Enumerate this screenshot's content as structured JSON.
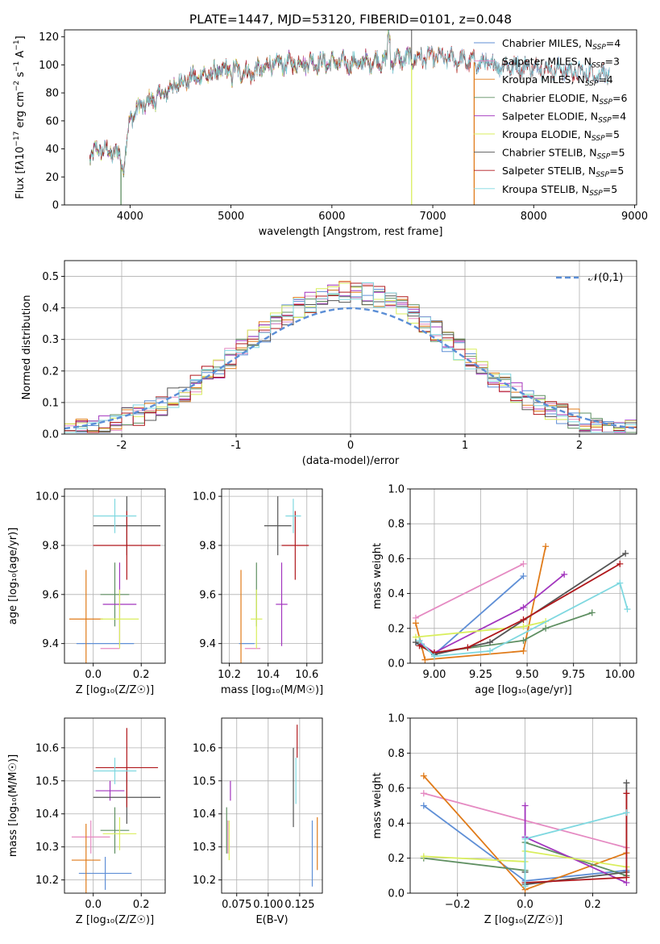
{
  "figure_title": "PLATE=1447, MJD=53120, FIBERID=0101, z=0.048",
  "colors": {
    "Chabrier MILES": "#5f8fd6",
    "Salpeter MILES": "#e58ac2",
    "Kroupa MILES": "#e07b1a",
    "Chabrier ELODIE": "#5f8f62",
    "Salpeter ELODIE": "#a235be",
    "Kroupa ELODIE": "#d9ee5c",
    "Chabrier STELIB": "#555555",
    "Salpeter STELIB": "#b0181c",
    "Kroupa STELIB": "#7fd8e0"
  },
  "chart_data": [
    {
      "id": "spectrum",
      "type": "line",
      "title": "PLATE=1447, MJD=53120, FIBERID=0101, z=0.048",
      "xlabel": "wavelength [Angstrom, rest frame]",
      "ylabel_html": "Flux [f<tspan font-style='italic'>λ</tspan>10<tspan dy='-6' font-size='9'>−17</tspan><tspan dy='6'> erg cm</tspan><tspan dy='-6' font-size='9'>−2</tspan><tspan dy='6'> s</tspan><tspan dy='-6' font-size='9'>−1</tspan><tspan dy='6'> A</tspan><tspan dy='-6' font-size='9'>−1</tspan><tspan dy='6'>]</tspan>",
      "xlim": [
        3350,
        9020
      ],
      "ylim": [
        0,
        125
      ],
      "xticks": [
        4000,
        5000,
        6000,
        7000,
        8000,
        9000
      ],
      "yticks": [
        0,
        20,
        40,
        60,
        80,
        100,
        120
      ],
      "legend_position": "top-right",
      "continuum_knots": [
        [
          3600,
          35
        ],
        [
          3700,
          40
        ],
        [
          3800,
          38
        ],
        [
          3900,
          36
        ],
        [
          3930,
          25
        ],
        [
          4000,
          62
        ],
        [
          4100,
          70
        ],
        [
          4300,
          78
        ],
        [
          4500,
          88
        ],
        [
          4700,
          92
        ],
        [
          5000,
          97
        ],
        [
          5200,
          94
        ],
        [
          5400,
          100
        ],
        [
          5800,
          102
        ],
        [
          6200,
          101
        ],
        [
          6500,
          103
        ],
        [
          6700,
          104
        ],
        [
          7000,
          106
        ],
        [
          7300,
          103
        ],
        [
          7600,
          100
        ],
        [
          8000,
          98
        ],
        [
          8300,
          96
        ],
        [
          8600,
          94
        ],
        [
          8750,
          93
        ]
      ],
      "series": [
        {
          "name": "Chabrier MILES",
          "nssp": "4",
          "range": [
            3600,
            8750
          ],
          "dropout": null
        },
        {
          "name": "Salpeter MILES",
          "nssp": "3",
          "range": [
            3600,
            7420
          ],
          "dropout": null
        },
        {
          "name": "Kroupa MILES",
          "nssp": "4",
          "range": [
            3600,
            7420
          ],
          "dropout": 7410
        },
        {
          "name": "Chabrier ELODIE",
          "nssp": "6",
          "range": [
            3600,
            6800
          ],
          "dropout": 3910
        },
        {
          "name": "Salpeter ELODIE",
          "nssp": "4",
          "range": [
            3600,
            6800
          ],
          "dropout": null
        },
        {
          "name": "Kroupa ELODIE",
          "nssp": "5",
          "range": [
            3600,
            6800
          ],
          "dropout": 6790
        },
        {
          "name": "Chabrier STELIB",
          "nssp": "5",
          "range": [
            3600,
            8750
          ],
          "dropout": null
        },
        {
          "name": "Salpeter STELIB",
          "nssp": "5",
          "range": [
            3600,
            8750
          ],
          "dropout": null
        },
        {
          "name": "Kroupa STELIB",
          "nssp": "5",
          "range": [
            3600,
            8750
          ],
          "dropout": null
        }
      ]
    },
    {
      "id": "residuals",
      "type": "step",
      "xlabel": "(data-model)/error",
      "ylabel": "Normed distribution",
      "xlim": [
        -2.5,
        2.5
      ],
      "ylim": [
        0,
        0.55
      ],
      "xticks": [
        -2,
        -1,
        0,
        1,
        2
      ],
      "yticks": [
        0.0,
        0.1,
        0.2,
        0.3,
        0.4,
        0.5
      ],
      "grid": true,
      "legend_label": "𝒩(0,1)",
      "legend_position": "top-right",
      "bin_width": 0.1,
      "gaussian": {
        "mean": 0,
        "sigma": 1
      }
    },
    {
      "id": "age_vs_Z",
      "type": "errorbar",
      "xlabel": "Z [log₁₀(Z/Z☉)]",
      "ylabel": "age  [log₁₀(age/yr)]",
      "xlim": [
        -0.12,
        0.3
      ],
      "ylim": [
        9.32,
        10.03
      ],
      "xticks": [
        0.0,
        0.2
      ],
      "xticklabels": [
        "0.0",
        "0.2"
      ],
      "yticks": [
        9.4,
        9.6,
        9.8,
        10.0
      ],
      "yticklabels": [
        "9.4",
        "9.6",
        "9.8",
        "10.0"
      ],
      "grid": true,
      "points": [
        {
          "c": "Chabrier MILES",
          "x": 0.05,
          "xe": 0.12,
          "y": 9.4,
          "ye": 0.0
        },
        {
          "c": "Salpeter MILES",
          "x": 0.07,
          "xe": 0.04,
          "y": 9.38,
          "ye": 0.0
        },
        {
          "c": "Kroupa MILES",
          "x": -0.03,
          "xe": 0.07,
          "y": 9.5,
          "ye": 0.2
        },
        {
          "c": "Chabrier ELODIE",
          "x": 0.09,
          "xe": 0.06,
          "y": 9.6,
          "ye": 0.13
        },
        {
          "c": "Salpeter ELODIE",
          "x": 0.11,
          "xe": 0.07,
          "y": 9.56,
          "ye": 0.17
        },
        {
          "c": "Kroupa ELODIE",
          "x": 0.11,
          "xe": 0.08,
          "y": 9.5,
          "ye": 0.12
        },
        {
          "c": "Chabrier STELIB",
          "x": 0.14,
          "xe": 0.14,
          "y": 9.88,
          "ye": 0.12
        },
        {
          "c": "Salpeter STELIB",
          "x": 0.14,
          "xe": 0.14,
          "y": 9.8,
          "ye": 0.14
        },
        {
          "c": "Kroupa STELIB",
          "x": 0.09,
          "xe": 0.09,
          "y": 9.92,
          "ye": 0.07
        }
      ]
    },
    {
      "id": "age_vs_mass",
      "type": "errorbar",
      "xlabel": "mass [log₁₀(M/M☉)]",
      "ylabel": "",
      "xlim": [
        10.16,
        10.68
      ],
      "ylim": [
        9.32,
        10.03
      ],
      "xticks": [
        10.2,
        10.4,
        10.6
      ],
      "xticklabels": [
        "10.2",
        "10.4",
        "10.6"
      ],
      "yticks": [
        9.4,
        9.6,
        9.8,
        10.0
      ],
      "yticklabels": [
        "9.4",
        "9.6",
        "9.8",
        "10.0"
      ],
      "grid": true,
      "points": [
        {
          "c": "Chabrier MILES",
          "x": 10.29,
          "xe": 0.04,
          "y": 9.4,
          "ye": 0.0
        },
        {
          "c": "Salpeter MILES",
          "x": 10.32,
          "xe": 0.04,
          "y": 9.38,
          "ye": 0.0
        },
        {
          "c": "Kroupa MILES",
          "x": 10.26,
          "xe": 0.0,
          "y": 9.5,
          "ye": 0.2
        },
        {
          "c": "Chabrier ELODIE",
          "x": 10.34,
          "xe": 0.0,
          "y": 9.6,
          "ye": 0.13
        },
        {
          "c": "Salpeter ELODIE",
          "x": 10.47,
          "xe": 0.03,
          "y": 9.56,
          "ye": 0.17
        },
        {
          "c": "Kroupa ELODIE",
          "x": 10.34,
          "xe": 0.03,
          "y": 9.5,
          "ye": 0.12
        },
        {
          "c": "Chabrier STELIB",
          "x": 10.45,
          "xe": 0.07,
          "y": 9.88,
          "ye": 0.12
        },
        {
          "c": "Salpeter STELIB",
          "x": 10.54,
          "xe": 0.07,
          "y": 9.8,
          "ye": 0.14
        },
        {
          "c": "Kroupa STELIB",
          "x": 10.53,
          "xe": 0.04,
          "y": 9.92,
          "ye": 0.07
        }
      ]
    },
    {
      "id": "mass_vs_Z",
      "type": "errorbar",
      "xlabel": "Z [log₁₀(Z/Z☉)]",
      "ylabel": "mass [log₁₀(M/M☉)]",
      "xlim": [
        -0.12,
        0.3
      ],
      "ylim": [
        10.16,
        10.69
      ],
      "xticks": [
        0.0,
        0.2
      ],
      "xticklabels": [
        "0.0",
        "0.2"
      ],
      "yticks": [
        10.2,
        10.3,
        10.4,
        10.5,
        10.6
      ],
      "yticklabels": [
        "10.2",
        "10.3",
        "10.4",
        "10.5",
        "10.6"
      ],
      "grid": true,
      "points": [
        {
          "c": "Chabrier MILES",
          "x": 0.05,
          "xe": 0.11,
          "y": 10.22,
          "ye": 0.05
        },
        {
          "c": "Salpeter MILES",
          "x": -0.01,
          "xe": 0.08,
          "y": 10.33,
          "ye": 0.05
        },
        {
          "c": "Kroupa MILES",
          "x": -0.03,
          "xe": 0.06,
          "y": 10.26,
          "ye": 0.11
        },
        {
          "c": "Chabrier ELODIE",
          "x": 0.09,
          "xe": 0.06,
          "y": 10.35,
          "ye": 0.07
        },
        {
          "c": "Salpeter ELODIE",
          "x": 0.07,
          "xe": 0.06,
          "y": 10.47,
          "ye": 0.03
        },
        {
          "c": "Kroupa ELODIE",
          "x": 0.11,
          "xe": 0.07,
          "y": 10.34,
          "ye": 0.05
        },
        {
          "c": "Chabrier STELIB",
          "x": 0.14,
          "xe": 0.14,
          "y": 10.45,
          "ye": 0.08
        },
        {
          "c": "Salpeter STELIB",
          "x": 0.14,
          "xe": 0.13,
          "y": 10.54,
          "ye": 0.12
        },
        {
          "c": "Kroupa STELIB",
          "x": 0.09,
          "xe": 0.09,
          "y": 10.53,
          "ye": 0.04
        }
      ]
    },
    {
      "id": "mass_vs_EBV",
      "type": "errorbar",
      "xlabel": "E(B-V)",
      "ylabel": "",
      "xlim": [
        0.063,
        0.143
      ],
      "ylim": [
        10.16,
        10.69
      ],
      "xticks": [
        0.075,
        0.1,
        0.125
      ],
      "xticklabels": [
        "0.075",
        "0.100",
        "0.125"
      ],
      "yticks": [
        10.2,
        10.3,
        10.4,
        10.5,
        10.6
      ],
      "yticklabels": [
        "10.2",
        "10.3",
        "10.4",
        "10.5",
        "10.6"
      ],
      "grid": true,
      "points": [
        {
          "c": "Chabrier MILES",
          "x": 0.135,
          "xe": 0.0,
          "y": 10.28,
          "ye": 0.1
        },
        {
          "c": "Salpeter MILES",
          "x": 0.068,
          "xe": 0.0,
          "y": 10.33,
          "ye": 0.05
        },
        {
          "c": "Kroupa MILES",
          "x": 0.139,
          "xe": 0.0,
          "y": 10.31,
          "ye": 0.08
        },
        {
          "c": "Chabrier ELODIE",
          "x": 0.067,
          "xe": 0.0,
          "y": 10.35,
          "ye": 0.07
        },
        {
          "c": "Salpeter ELODIE",
          "x": 0.07,
          "xe": 0.0,
          "y": 10.47,
          "ye": 0.03
        },
        {
          "c": "Kroupa ELODIE",
          "x": 0.069,
          "xe": 0.0,
          "y": 10.32,
          "ye": 0.06
        },
        {
          "c": "Chabrier STELIB",
          "x": 0.12,
          "xe": 0.0,
          "y": 10.48,
          "ye": 0.12
        },
        {
          "c": "Salpeter STELIB",
          "x": 0.123,
          "xe": 0.0,
          "y": 10.62,
          "ye": 0.05
        },
        {
          "c": "Kroupa STELIB",
          "x": 0.122,
          "xe": 0.0,
          "y": 10.5,
          "ye": 0.07
        }
      ]
    },
    {
      "id": "weight_vs_age",
      "type": "line",
      "xlabel": "age  [log₁₀(age/yr)]",
      "ylabel": "mass weight",
      "xlim": [
        8.87,
        10.09
      ],
      "ylim": [
        0,
        1
      ],
      "xticks": [
        9.0,
        9.25,
        9.5,
        9.75,
        10.0
      ],
      "xticklabels": [
        "9.00",
        "9.25",
        "9.50",
        "9.75",
        "10.00"
      ],
      "yticks": [
        0,
        0.2,
        0.4,
        0.6,
        0.8,
        1.0
      ],
      "yticklabels": [
        "0.0",
        "0.2",
        "0.4",
        "0.6",
        "0.8",
        "1.0"
      ],
      "grid": true,
      "series": [
        {
          "c": "Chabrier MILES",
          "pts": [
            [
              8.92,
              0.11
            ],
            [
              9.0,
              0.05
            ],
            [
              9.48,
              0.5
            ]
          ]
        },
        {
          "c": "Salpeter MILES",
          "pts": [
            [
              8.9,
              0.26
            ],
            [
              9.48,
              0.57
            ]
          ]
        },
        {
          "c": "Kroupa MILES",
          "pts": [
            [
              8.9,
              0.23
            ],
            [
              8.95,
              0.02
            ],
            [
              9.48,
              0.07
            ],
            [
              9.6,
              0.67
            ]
          ]
        },
        {
          "c": "Chabrier ELODIE",
          "pts": [
            [
              8.93,
              0.1
            ],
            [
              9.0,
              0.06
            ],
            [
              9.48,
              0.13
            ],
            [
              9.6,
              0.2
            ],
            [
              9.85,
              0.29
            ]
          ]
        },
        {
          "c": "Salpeter ELODIE",
          "pts": [
            [
              8.93,
              0.11
            ],
            [
              9.0,
              0.06
            ],
            [
              9.48,
              0.32
            ],
            [
              9.7,
              0.51
            ]
          ]
        },
        {
          "c": "Kroupa ELODIE",
          "pts": [
            [
              8.9,
              0.15
            ],
            [
              9.48,
              0.21
            ],
            [
              9.6,
              0.24
            ]
          ]
        },
        {
          "c": "Chabrier STELIB",
          "pts": [
            [
              8.9,
              0.12
            ],
            [
              9.0,
              0.05
            ],
            [
              9.3,
              0.12
            ],
            [
              10.03,
              0.63
            ]
          ]
        },
        {
          "c": "Salpeter STELIB",
          "pts": [
            [
              8.92,
              0.1
            ],
            [
              9.0,
              0.06
            ],
            [
              9.18,
              0.09
            ],
            [
              9.48,
              0.25
            ],
            [
              10.0,
              0.57
            ]
          ]
        },
        {
          "c": "Kroupa STELIB",
          "pts": [
            [
              8.92,
              0.13
            ],
            [
              9.0,
              0.04
            ],
            [
              9.3,
              0.07
            ],
            [
              10.0,
              0.46
            ],
            [
              10.04,
              0.31
            ]
          ]
        }
      ]
    },
    {
      "id": "weight_vs_Z",
      "type": "line",
      "xlabel": "Z [log₁₀(Z/Z☉)]",
      "ylabel": "mass weight",
      "xlim": [
        -0.34,
        0.33
      ],
      "ylim": [
        0,
        1
      ],
      "xticks": [
        -0.2,
        0.0,
        0.2
      ],
      "xticklabels": [
        "−0.2",
        "0.0",
        "0.2"
      ],
      "yticks": [
        0,
        0.2,
        0.4,
        0.6,
        0.8,
        1.0
      ],
      "yticklabels": [
        "0.0",
        "0.2",
        "0.4",
        "0.6",
        "0.8",
        "1.0"
      ],
      "grid": true,
      "series": [
        {
          "c": "Chabrier MILES",
          "pts": [
            [
              -0.3,
              0.5
            ],
            [
              0.0,
              0.07
            ],
            [
              0.3,
              0.13
            ]
          ]
        },
        {
          "c": "Salpeter MILES",
          "pts": [
            [
              -0.3,
              0.57
            ],
            [
              0.3,
              0.26
            ]
          ]
        },
        {
          "c": "Kroupa MILES",
          "pts": [
            [
              -0.3,
              0.67
            ],
            [
              0.0,
              0.02
            ],
            [
              0.3,
              0.23
            ]
          ]
        },
        {
          "c": "Chabrier ELODIE",
          "pts": [
            [
              -0.3,
              0.2
            ],
            [
              0.0,
              0.13
            ],
            [
              0.0,
              0.29
            ],
            [
              0.3,
              0.1
            ]
          ]
        },
        {
          "c": "Salpeter ELODIE",
          "pts": [
            [
              0.0,
              0.5
            ],
            [
              0.0,
              0.32
            ],
            [
              0.3,
              0.06
            ]
          ]
        },
        {
          "c": "Kroupa ELODIE",
          "pts": [
            [
              -0.3,
              0.21
            ],
            [
              0.0,
              0.18
            ],
            [
              0.0,
              0.24
            ],
            [
              0.3,
              0.15
            ]
          ]
        },
        {
          "c": "Chabrier STELIB",
          "pts": [
            [
              0.0,
              0.12
            ],
            [
              0.0,
              0.05
            ],
            [
              0.3,
              0.12
            ],
            [
              0.3,
              0.63
            ]
          ]
        },
        {
          "c": "Salpeter STELIB",
          "pts": [
            [
              0.0,
              0.06
            ],
            [
              0.3,
              0.09
            ],
            [
              0.3,
              0.57
            ]
          ]
        },
        {
          "c": "Kroupa STELIB",
          "pts": [
            [
              0.0,
              0.04
            ],
            [
              0.0,
              0.31
            ],
            [
              0.3,
              0.46
            ]
          ]
        }
      ]
    }
  ]
}
